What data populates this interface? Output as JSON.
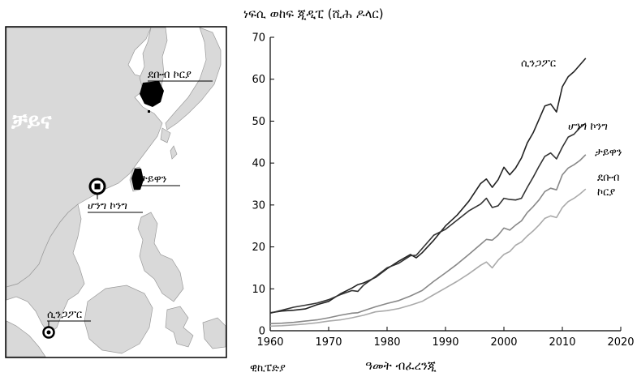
{
  "map": {
    "china_label": "ቻይና",
    "credit": "ዊኪፔድያ",
    "countries": [
      {
        "id": "south-korea",
        "label": "ደቡብ ኮርያ"
      },
      {
        "id": "taiwan",
        "label": "ታይዋን"
      },
      {
        "id": "hong-kong",
        "label": "ሆንግ ኮንግ"
      },
      {
        "id": "singapore",
        "label": "ሲንጋፖር"
      }
    ]
  },
  "chart_data": {
    "type": "line",
    "title": "",
    "ylabel": "ነፍሲ ወከፍ ጂዲፒ (ሺሕ ዶላር)",
    "xlabel": "ዓመት ብፈረንጂ",
    "xlim": [
      1960,
      2020
    ],
    "ylim": [
      0,
      70
    ],
    "xticks": [
      1960,
      1970,
      1980,
      1990,
      2000,
      2010,
      2020
    ],
    "yticks": [
      0,
      10,
      20,
      30,
      40,
      50,
      60,
      70
    ],
    "grid": false,
    "series": [
      {
        "name": "ሲንጋፖር",
        "color": "#222222",
        "points": [
          [
            1960,
            4.3
          ],
          [
            1962,
            4.7
          ],
          [
            1964,
            4.9
          ],
          [
            1966,
            5.2
          ],
          [
            1968,
            6.2
          ],
          [
            1970,
            7.0
          ],
          [
            1972,
            8.8
          ],
          [
            1974,
            10.2
          ],
          [
            1975,
            11.0
          ],
          [
            1976,
            11.4
          ],
          [
            1978,
            12.7
          ],
          [
            1980,
            14.8
          ],
          [
            1982,
            16.6
          ],
          [
            1984,
            18.2
          ],
          [
            1985,
            17.4
          ],
          [
            1986,
            18.6
          ],
          [
            1988,
            21.6
          ],
          [
            1990,
            25.0
          ],
          [
            1992,
            27.6
          ],
          [
            1994,
            30.9
          ],
          [
            1996,
            35.1
          ],
          [
            1997,
            36.2
          ],
          [
            1998,
            34.2
          ],
          [
            1999,
            36.0
          ],
          [
            2000,
            39.0
          ],
          [
            2001,
            37.2
          ],
          [
            2002,
            38.8
          ],
          [
            2003,
            41.2
          ],
          [
            2004,
            44.8
          ],
          [
            2005,
            47.2
          ],
          [
            2006,
            50.4
          ],
          [
            2007,
            53.6
          ],
          [
            2008,
            54.1
          ],
          [
            2009,
            52.2
          ],
          [
            2010,
            58.2
          ],
          [
            2011,
            60.6
          ],
          [
            2012,
            61.8
          ],
          [
            2013,
            63.4
          ],
          [
            2014,
            65.0
          ]
        ]
      },
      {
        "name": "ሆንግ ኮንግ",
        "color": "#333333",
        "points": [
          [
            1960,
            4.2
          ],
          [
            1962,
            4.9
          ],
          [
            1964,
            5.6
          ],
          [
            1966,
            6.1
          ],
          [
            1968,
            6.6
          ],
          [
            1970,
            7.4
          ],
          [
            1972,
            8.6
          ],
          [
            1974,
            9.6
          ],
          [
            1975,
            9.4
          ],
          [
            1976,
            10.9
          ],
          [
            1978,
            12.9
          ],
          [
            1980,
            15.0
          ],
          [
            1982,
            16.1
          ],
          [
            1984,
            17.9
          ],
          [
            1985,
            18.0
          ],
          [
            1986,
            19.6
          ],
          [
            1988,
            22.8
          ],
          [
            1990,
            24.2
          ],
          [
            1992,
            26.4
          ],
          [
            1994,
            28.6
          ],
          [
            1996,
            30.2
          ],
          [
            1997,
            31.6
          ],
          [
            1998,
            29.4
          ],
          [
            1999,
            29.8
          ],
          [
            2000,
            31.6
          ],
          [
            2001,
            31.3
          ],
          [
            2002,
            31.2
          ],
          [
            2003,
            31.6
          ],
          [
            2004,
            34.2
          ],
          [
            2005,
            36.6
          ],
          [
            2006,
            39.2
          ],
          [
            2007,
            41.6
          ],
          [
            2008,
            42.4
          ],
          [
            2009,
            41.0
          ],
          [
            2010,
            43.8
          ],
          [
            2011,
            46.2
          ],
          [
            2012,
            46.9
          ],
          [
            2013,
            48.4
          ],
          [
            2014,
            49.5
          ]
        ]
      },
      {
        "name": "ታይዋን",
        "color": "#888888",
        "points": [
          [
            1960,
            1.7
          ],
          [
            1962,
            1.8
          ],
          [
            1964,
            2.0
          ],
          [
            1966,
            2.3
          ],
          [
            1968,
            2.6
          ],
          [
            1970,
            3.1
          ],
          [
            1972,
            3.7
          ],
          [
            1974,
            4.2
          ],
          [
            1975,
            4.3
          ],
          [
            1976,
            4.8
          ],
          [
            1978,
            5.7
          ],
          [
            1980,
            6.5
          ],
          [
            1982,
            7.2
          ],
          [
            1984,
            8.3
          ],
          [
            1986,
            9.6
          ],
          [
            1988,
            11.8
          ],
          [
            1990,
            13.8
          ],
          [
            1992,
            15.9
          ],
          [
            1994,
            18.2
          ],
          [
            1996,
            20.6
          ],
          [
            1997,
            21.8
          ],
          [
            1998,
            21.6
          ],
          [
            1999,
            22.8
          ],
          [
            2000,
            24.5
          ],
          [
            2001,
            24.0
          ],
          [
            2002,
            25.2
          ],
          [
            2003,
            26.2
          ],
          [
            2004,
            28.2
          ],
          [
            2005,
            29.6
          ],
          [
            2006,
            31.2
          ],
          [
            2007,
            33.2
          ],
          [
            2008,
            34.0
          ],
          [
            2009,
            33.6
          ],
          [
            2010,
            37.2
          ],
          [
            2011,
            38.8
          ],
          [
            2012,
            39.6
          ],
          [
            2013,
            40.6
          ],
          [
            2014,
            42.0
          ]
        ]
      },
      {
        "name": "ደቡብ ኮርያ",
        "color": "#aaaaaa",
        "points": [
          [
            1960,
            1.1
          ],
          [
            1962,
            1.2
          ],
          [
            1964,
            1.4
          ],
          [
            1966,
            1.6
          ],
          [
            1968,
            1.9
          ],
          [
            1970,
            2.3
          ],
          [
            1972,
            2.6
          ],
          [
            1974,
            3.1
          ],
          [
            1976,
            3.7
          ],
          [
            1978,
            4.5
          ],
          [
            1980,
            4.8
          ],
          [
            1982,
            5.3
          ],
          [
            1984,
            6.1
          ],
          [
            1986,
            7.0
          ],
          [
            1988,
            8.6
          ],
          [
            1990,
            10.2
          ],
          [
            1992,
            11.8
          ],
          [
            1994,
            13.6
          ],
          [
            1996,
            15.6
          ],
          [
            1997,
            16.4
          ],
          [
            1998,
            15.0
          ],
          [
            1999,
            16.8
          ],
          [
            2000,
            18.2
          ],
          [
            2001,
            18.9
          ],
          [
            2002,
            20.4
          ],
          [
            2003,
            21.2
          ],
          [
            2004,
            22.6
          ],
          [
            2005,
            23.8
          ],
          [
            2006,
            25.2
          ],
          [
            2007,
            26.8
          ],
          [
            2008,
            27.4
          ],
          [
            2009,
            27.0
          ],
          [
            2010,
            29.4
          ],
          [
            2011,
            30.8
          ],
          [
            2012,
            31.6
          ],
          [
            2013,
            32.6
          ],
          [
            2014,
            33.8
          ]
        ]
      }
    ]
  }
}
